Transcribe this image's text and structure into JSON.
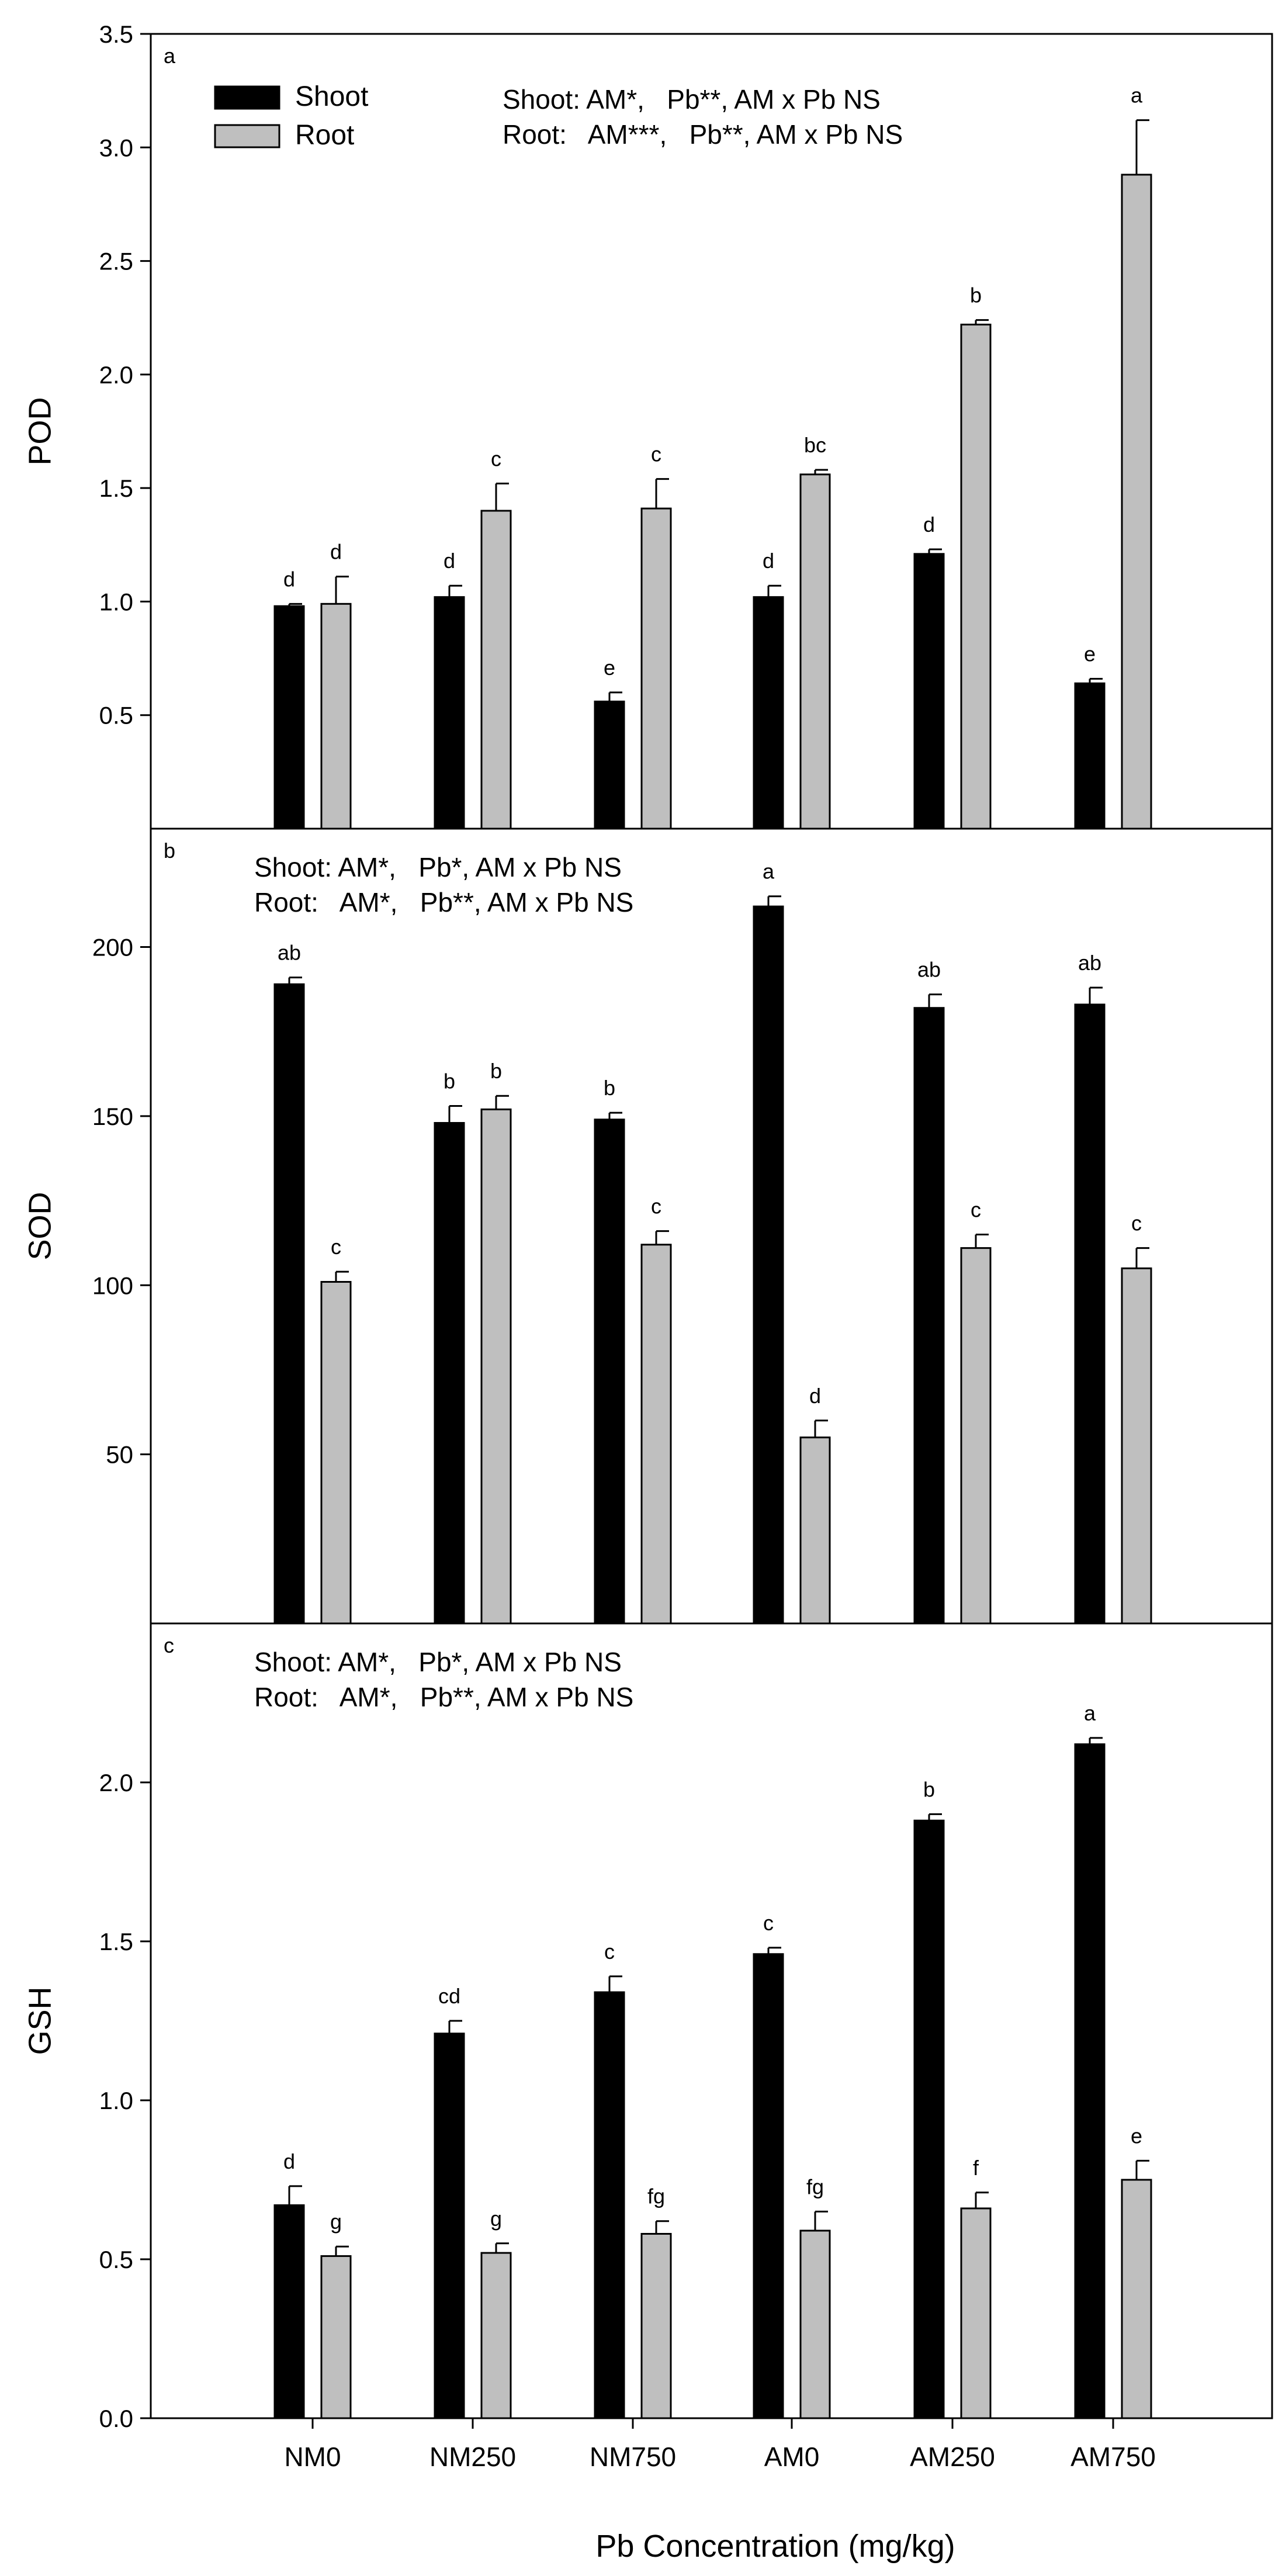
{
  "figure": {
    "xlabel": "Pb Concentration (mg/kg)",
    "categories": [
      "NM0",
      "NM250",
      "NM750",
      "AM0",
      "AM250",
      "AM750"
    ],
    "legend": [
      {
        "name": "Shoot",
        "color": "#000000"
      },
      {
        "name": "Root",
        "color": "#bfbfbf"
      }
    ]
  },
  "chart_data": [
    {
      "type": "bar",
      "panel_label": "a",
      "ylabel": "POD",
      "ylim": [
        0,
        3.5
      ],
      "yticks": [
        0.5,
        1.0,
        1.5,
        2.0,
        2.5,
        3.0,
        3.5
      ],
      "annotations": [
        "Shoot: AM*,   Pb**, AM x Pb NS",
        "Root:   AM***,   Pb**, AM x Pb NS"
      ],
      "series": [
        {
          "name": "Shoot",
          "color": "#000000",
          "values": [
            0.98,
            1.02,
            0.56,
            1.02,
            1.21,
            0.64
          ],
          "errors": [
            0.01,
            0.05,
            0.04,
            0.05,
            0.02,
            0.02
          ],
          "letters": [
            "d",
            "d",
            "e",
            "d",
            "d",
            "e"
          ]
        },
        {
          "name": "Root",
          "color": "#bfbfbf",
          "values": [
            0.99,
            1.4,
            1.41,
            1.56,
            2.22,
            2.88
          ],
          "errors": [
            0.12,
            0.12,
            0.13,
            0.02,
            0.02,
            0.24
          ],
          "letters": [
            "d",
            "c",
            "c",
            "bc",
            "b",
            "a"
          ]
        }
      ]
    },
    {
      "type": "bar",
      "panel_label": "b",
      "ylabel": "SOD",
      "ylim": [
        0,
        235
      ],
      "yticks": [
        50,
        100,
        150,
        200
      ],
      "annotations": [
        "Shoot: AM*,   Pb*, AM x Pb NS",
        "Root:   AM*,   Pb**, AM x Pb NS"
      ],
      "series": [
        {
          "name": "Shoot",
          "color": "#000000",
          "values": [
            189,
            148,
            149,
            212,
            182,
            183
          ],
          "errors": [
            2,
            5,
            2,
            3,
            4,
            5
          ],
          "letters": [
            "ab",
            "b",
            "b",
            "a",
            "ab",
            "ab"
          ]
        },
        {
          "name": "Root",
          "color": "#bfbfbf",
          "values": [
            101,
            152,
            112,
            55,
            111,
            105
          ],
          "errors": [
            3,
            4,
            4,
            5,
            4,
            6
          ],
          "letters": [
            "c",
            "b",
            "c",
            "d",
            "c",
            "c"
          ]
        }
      ]
    },
    {
      "type": "bar",
      "panel_label": "c",
      "ylabel": "GSH",
      "ylim": [
        0,
        2.5
      ],
      "yticks": [
        0.0,
        0.5,
        1.0,
        1.5,
        2.0
      ],
      "annotations": [
        "Shoot: AM*,   Pb*, AM x Pb NS",
        "Root:   AM*,   Pb**, AM x Pb NS"
      ],
      "series": [
        {
          "name": "Shoot",
          "color": "#000000",
          "values": [
            0.67,
            1.21,
            1.34,
            1.46,
            1.88,
            2.12
          ],
          "errors": [
            0.06,
            0.04,
            0.05,
            0.02,
            0.02,
            0.02
          ],
          "letters": [
            "d",
            "cd",
            "c",
            "c",
            "b",
            "a"
          ]
        },
        {
          "name": "Root",
          "color": "#bfbfbf",
          "values": [
            0.51,
            0.52,
            0.58,
            0.59,
            0.66,
            0.75
          ],
          "errors": [
            0.03,
            0.03,
            0.04,
            0.06,
            0.05,
            0.06
          ],
          "letters": [
            "g",
            "g",
            "fg",
            "fg",
            "f",
            "e"
          ]
        }
      ]
    }
  ]
}
